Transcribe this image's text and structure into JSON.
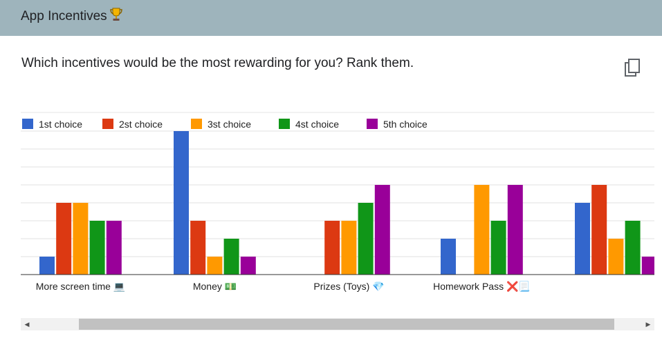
{
  "header": {
    "title": "App Incentives",
    "icon": "trophy-icon"
  },
  "question": {
    "text": "Which incentives would be the most rewarding for you? Rank them."
  },
  "colors": {
    "header_bg": "#9eb4bc",
    "series": [
      "#3366cc",
      "#dc3912",
      "#ff9900",
      "#109618",
      "#990099"
    ]
  },
  "chart_data": {
    "type": "bar",
    "categories": [
      "More screen time 💻",
      "Money 💵",
      "Prizes (Toys) 💎",
      "Homework Pass ❌📃",
      ""
    ],
    "series": [
      {
        "name": "1st choice",
        "values": [
          1,
          8,
          0,
          2,
          4
        ]
      },
      {
        "name": "2st choice",
        "values": [
          4,
          3,
          3,
          0,
          5
        ]
      },
      {
        "name": "3st choice",
        "values": [
          4,
          1,
          3,
          5,
          2
        ]
      },
      {
        "name": "4st choice",
        "values": [
          3,
          2,
          4,
          3,
          3
        ]
      },
      {
        "name": "5th choice",
        "values": [
          3,
          1,
          5,
          5,
          1
        ]
      }
    ],
    "ylim": [
      0,
      8
    ],
    "grid": true,
    "legend": "top-left"
  }
}
